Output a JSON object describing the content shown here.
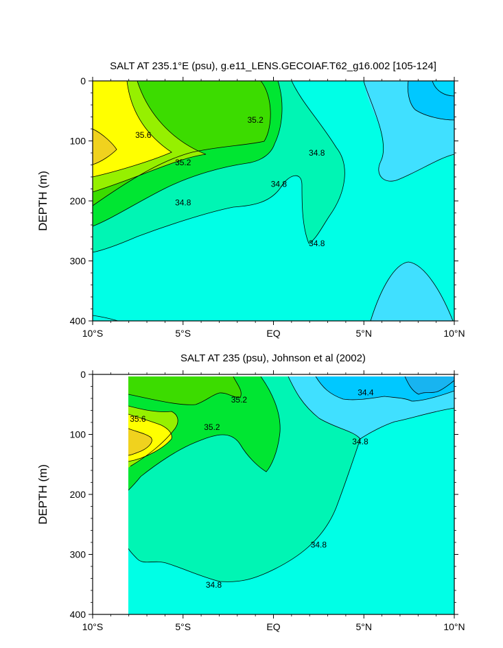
{
  "chart_data": [
    {
      "type": "contour",
      "title": "SALT AT 235.1°E (psu), g.e11_LENS.GECOIAF.T62_g16.002 [105-124]",
      "ylabel": "DEPTH (m)",
      "xlim": [
        -10,
        10
      ],
      "ylim": [
        400,
        0
      ],
      "x_ticks": [
        {
          "v": -10,
          "label": "10°S"
        },
        {
          "v": -5,
          "label": "5°S"
        },
        {
          "v": 0,
          "label": "EQ"
        },
        {
          "v": 5,
          "label": "5°N"
        },
        {
          "v": 10,
          "label": "10°N"
        }
      ],
      "y_ticks": [
        {
          "v": 0,
          "label": "0"
        },
        {
          "v": 100,
          "label": "100"
        },
        {
          "v": 200,
          "label": "200"
        },
        {
          "v": 300,
          "label": "300"
        },
        {
          "v": 400,
          "label": "400"
        }
      ],
      "contour_interval": 0.2,
      "colors": {
        "34.2-34.4": "#00c8ff",
        "34.4-34.6": "#40e0ff",
        "34.6-34.8": "#00ffe6",
        "34.8-35.0": "#00f5b4",
        "35.0-35.2": "#00e632",
        "35.2-35.4": "#3cdc00",
        "35.4-35.6": "#96f000",
        "35.6-35.8": "#ffff00",
        "35.8-36.0": "#f0d21e"
      },
      "contour_labels": [
        {
          "value": "35.2",
          "x": -1.0,
          "y": 65
        },
        {
          "value": "35.6",
          "x": -7.2,
          "y": 90
        },
        {
          "value": "35.2",
          "x": -5.0,
          "y": 136
        },
        {
          "value": "34.8",
          "x": 2.4,
          "y": 120
        },
        {
          "value": "34.8",
          "x": 0.3,
          "y": 172
        },
        {
          "value": "34.8",
          "x": -5.0,
          "y": 203
        },
        {
          "value": "34.8",
          "x": 2.4,
          "y": 271
        }
      ]
    },
    {
      "type": "contour",
      "title": "SALT AT 235 (psu), Johnson et al (2002)",
      "ylabel": "DEPTH (m)",
      "xlim": [
        -10,
        10
      ],
      "ylim": [
        400,
        0
      ],
      "data_xlim": [
        -8,
        10
      ],
      "x_ticks": [
        {
          "v": -10,
          "label": "10°S"
        },
        {
          "v": -5,
          "label": "5°S"
        },
        {
          "v": 0,
          "label": "EQ"
        },
        {
          "v": 5,
          "label": "5°N"
        },
        {
          "v": 10,
          "label": "10°N"
        }
      ],
      "y_ticks": [
        {
          "v": 0,
          "label": "0"
        },
        {
          "v": 100,
          "label": "100"
        },
        {
          "v": 200,
          "label": "200"
        },
        {
          "v": 300,
          "label": "300"
        },
        {
          "v": 400,
          "label": "400"
        }
      ],
      "contour_interval": 0.2,
      "colors": {
        "34.2-34.4": "#00c8ff",
        "34.4-34.6": "#40e0ff",
        "34.6-34.8": "#00ffe6",
        "34.8-35.0": "#00f5b4",
        "35.0-35.2": "#00e632",
        "35.2-35.4": "#3cdc00",
        "35.4-35.6": "#96f000",
        "35.6-35.8": "#ffff00",
        "35.8-36.0": "#f0d21e"
      },
      "contour_labels": [
        {
          "value": "34.4",
          "x": 5.1,
          "y": 30
        },
        {
          "value": "35.2",
          "x": -1.9,
          "y": 42
        },
        {
          "value": "35.6",
          "x": -7.5,
          "y": 74
        },
        {
          "value": "35.2",
          "x": -3.4,
          "y": 88
        },
        {
          "value": "34.8",
          "x": 4.8,
          "y": 112
        },
        {
          "value": "34.8",
          "x": 2.5,
          "y": 284
        },
        {
          "value": "34.8",
          "x": -3.3,
          "y": 351
        }
      ]
    }
  ]
}
